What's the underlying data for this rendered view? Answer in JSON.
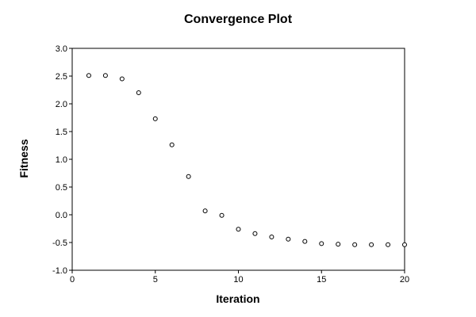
{
  "chart_data": {
    "type": "scatter",
    "title": "Convergence Plot",
    "xlabel": "Iteration",
    "ylabel": "Fitness",
    "xlim": [
      0,
      20
    ],
    "ylim": [
      -1.0,
      3.0
    ],
    "xticks": [
      "0",
      "5",
      "10",
      "15",
      "20"
    ],
    "yticks": [
      "3.0",
      "2.5",
      "2.0",
      "1.5",
      "1.0",
      "0.5",
      "0.0",
      "-0.5",
      "-1.0"
    ],
    "grid": true,
    "marker": "open-circle",
    "series": [
      {
        "x": [
          1,
          2,
          3,
          4,
          5,
          6,
          7,
          8,
          9,
          10,
          11,
          12,
          13,
          14,
          15,
          16,
          17,
          18,
          19,
          20
        ],
        "y": [
          2.51,
          2.51,
          2.45,
          2.2,
          1.73,
          1.26,
          0.69,
          0.07,
          -0.01,
          -0.26,
          -0.34,
          -0.4,
          -0.44,
          -0.48,
          -0.52,
          -0.53,
          -0.54,
          -0.54,
          -0.54,
          -0.54
        ]
      }
    ]
  }
}
